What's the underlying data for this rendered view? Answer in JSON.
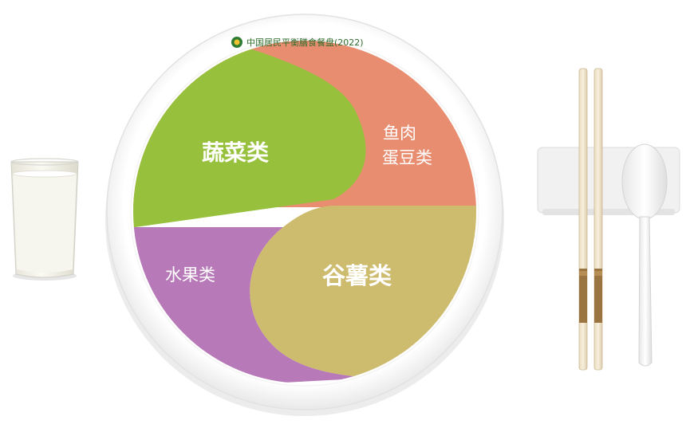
{
  "plate": {
    "title": "中国居民平衡膳食餐盘(2022)"
  },
  "segments": {
    "vegetables": {
      "label": "蔬菜类",
      "color": "#97c13c"
    },
    "meat_eggs_beans": {
      "line1": "鱼肉",
      "line2": "蛋豆类",
      "color": "#e88d70"
    },
    "grains_tubers": {
      "label": "谷薯类",
      "color": "#cdbb6e"
    },
    "fruit": {
      "label": "水果类",
      "color": "#b779b7"
    }
  },
  "side_items": {
    "milk_glass_icon": "milk-glass-icon",
    "chopsticks_icon": "chopsticks-icon",
    "spoon_icon": "spoon-icon",
    "chopstick_rest_icon": "chopstick-rest-icon"
  }
}
